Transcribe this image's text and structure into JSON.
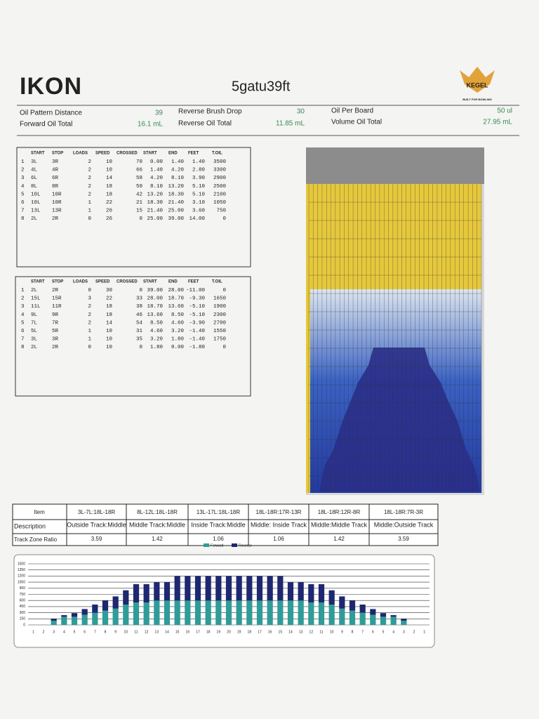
{
  "header": {
    "logo": "IKON",
    "title": "5gatu39ft",
    "brand": "KEGEL",
    "tagline": "BUILT FOR BOWLING"
  },
  "info": [
    {
      "label": "Oil Pattern Distance",
      "value": "39"
    },
    {
      "label": "Reverse Brush Drop",
      "value": "30"
    },
    {
      "label": "Oil Per Board",
      "value": "50 ul"
    },
    {
      "label": "Forward Oil Total",
      "value": "16.1 mL"
    },
    {
      "label": "Reverse Oil Total",
      "value": "11.85 mL"
    },
    {
      "label": "Volume Oil Total",
      "value": "27.95 mL"
    }
  ],
  "forward_table": {
    "columns": [
      "START",
      "STOP",
      "LOADS",
      "SPEED",
      "CROSSED",
      "START",
      "END",
      "FEET",
      "T.OIL"
    ],
    "rows": [
      [
        "1",
        "3L",
        "3R",
        "2",
        "10",
        "70",
        "0.00",
        "1.40",
        "1.40",
        "3500"
      ],
      [
        "2",
        "4L",
        "4R",
        "2",
        "10",
        "66",
        "1.40",
        "4.20",
        "2.80",
        "3300"
      ],
      [
        "3",
        "6L",
        "6R",
        "2",
        "14",
        "58",
        "4.20",
        "8.10",
        "3.90",
        "2900"
      ],
      [
        "4",
        "8L",
        "8R",
        "2",
        "18",
        "50",
        "8.10",
        "13.20",
        "5.10",
        "2500"
      ],
      [
        "5",
        "10L",
        "10R",
        "2",
        "18",
        "42",
        "13.20",
        "18.30",
        "5.10",
        "2100"
      ],
      [
        "6",
        "10L",
        "10R",
        "1",
        "22",
        "21",
        "18.30",
        "21.40",
        "3.10",
        "1050"
      ],
      [
        "7",
        "13L",
        "13R",
        "1",
        "26",
        "15",
        "21.40",
        "25.00",
        "3.60",
        "750"
      ],
      [
        "8",
        "2L",
        "2R",
        "0",
        "26",
        "0",
        "25.00",
        "39.00",
        "14.00",
        "0"
      ]
    ]
  },
  "reverse_table": {
    "columns": [
      "START",
      "STOP",
      "LOADS",
      "SPEED",
      "CROSSED",
      "START",
      "END",
      "FEET",
      "T.OIL"
    ],
    "rows": [
      [
        "1",
        "2L",
        "2R",
        "0",
        "30",
        "0",
        "39.00",
        "28.00",
        "-11.00",
        "0"
      ],
      [
        "2",
        "15L",
        "15R",
        "3",
        "22",
        "33",
        "28.00",
        "18.70",
        "-9.30",
        "1650"
      ],
      [
        "3",
        "11L",
        "11R",
        "2",
        "18",
        "38",
        "18.70",
        "13.60",
        "-5.10",
        "1900"
      ],
      [
        "4",
        "9L",
        "9R",
        "2",
        "18",
        "46",
        "13.60",
        "8.50",
        "-5.10",
        "2300"
      ],
      [
        "5",
        "7L",
        "7R",
        "2",
        "14",
        "54",
        "8.50",
        "4.60",
        "-3.90",
        "2700"
      ],
      [
        "6",
        "5L",
        "5R",
        "1",
        "10",
        "31",
        "4.60",
        "3.20",
        "-1.40",
        "1550"
      ],
      [
        "7",
        "3L",
        "3R",
        "1",
        "10",
        "35",
        "3.20",
        "1.80",
        "-1.40",
        "1750"
      ],
      [
        "8",
        "2L",
        "2R",
        "0",
        "10",
        "0",
        "1.80",
        "0.00",
        "-1.80",
        "0"
      ]
    ]
  },
  "track_zones": {
    "item_label": "Item",
    "columns": [
      "3L-7L:18L-18R",
      "8L-12L:18L-18R",
      "13L-17L:18L-18R",
      "18L-18R:17R-13R",
      "18L-18R:12R-8R",
      "18L-18R:7R-3R"
    ],
    "description_label": "Description",
    "descriptions": [
      "Outside Track:Middle",
      "Middle Track:Middle",
      "Inside Track:Middle",
      "Middle: Inside Track",
      "Middle:Middle Track",
      "Middle:Outside Track"
    ],
    "ratio_label": "Track Zone Ratio",
    "ratios": [
      "3.59",
      "1.42",
      "1.06",
      "1.06",
      "1.42",
      "3.59"
    ]
  },
  "chart_data": {
    "type": "bar",
    "stacked": true,
    "categories": [
      "1",
      "2",
      "3",
      "4",
      "5",
      "6",
      "7",
      "8",
      "9",
      "10",
      "11",
      "12",
      "13",
      "14",
      "15",
      "16",
      "17",
      "18",
      "19",
      "20",
      "19",
      "18",
      "17",
      "16",
      "15",
      "14",
      "13",
      "12",
      "11",
      "10",
      "9",
      "8",
      "7",
      "6",
      "5",
      "4",
      "3",
      "2",
      "1"
    ],
    "series": [
      {
        "name": "Forward",
        "color": "#2f9c98",
        "values": [
          0,
          0,
          100,
          200,
          200,
          250,
          300,
          350,
          400,
          500,
          550,
          550,
          600,
          600,
          600,
          600,
          600,
          600,
          600,
          600,
          600,
          600,
          600,
          600,
          600,
          600,
          600,
          550,
          550,
          500,
          400,
          350,
          300,
          250,
          200,
          200,
          100,
          0,
          0
        ]
      },
      {
        "name": "Reverse",
        "color": "#1e2870",
        "values": [
          0,
          0,
          50,
          40,
          90,
          140,
          200,
          250,
          300,
          350,
          450,
          450,
          450,
          450,
          600,
          600,
          600,
          600,
          600,
          600,
          600,
          600,
          600,
          600,
          600,
          450,
          450,
          450,
          450,
          350,
          300,
          250,
          200,
          140,
          90,
          40,
          50,
          0,
          0
        ]
      }
    ],
    "ylim": [
      0,
      1500
    ],
    "yticks": [
      0,
      150,
      300,
      450,
      600,
      750,
      900,
      1050,
      1200,
      1350,
      1500
    ],
    "grid": true
  }
}
